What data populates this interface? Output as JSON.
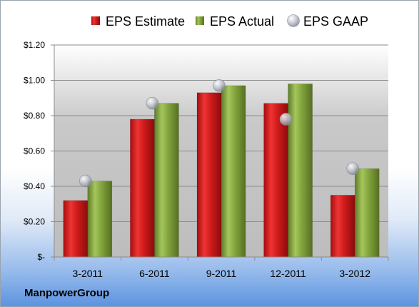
{
  "company": "ManpowerGroup",
  "chart_data": {
    "type": "bar",
    "categories": [
      "3-2011",
      "6-2011",
      "9-2011",
      "12-2011",
      "3-2012"
    ],
    "series": [
      {
        "name": "EPS Estimate",
        "type": "bar",
        "values": [
          0.32,
          0.78,
          0.93,
          0.87,
          0.35
        ],
        "color": "#cc1a1a"
      },
      {
        "name": "EPS Actual",
        "type": "bar",
        "values": [
          0.43,
          0.87,
          0.97,
          0.98,
          0.5
        ],
        "color": "#7fa23c"
      },
      {
        "name": "EPS GAAP",
        "type": "scatter",
        "values": [
          0.43,
          0.87,
          0.97,
          0.78,
          0.5
        ],
        "color": "#c0c4cc"
      }
    ],
    "ylim": [
      0,
      1.2
    ],
    "yticks": [
      0,
      0.2,
      0.4,
      0.6,
      0.8,
      1.0,
      1.2
    ],
    "ytick_labels": [
      "$-",
      "$0.20",
      "$0.40",
      "$0.60",
      "$0.80",
      "$1.00",
      "$1.20"
    ],
    "grid": true,
    "legend_position": "top"
  }
}
